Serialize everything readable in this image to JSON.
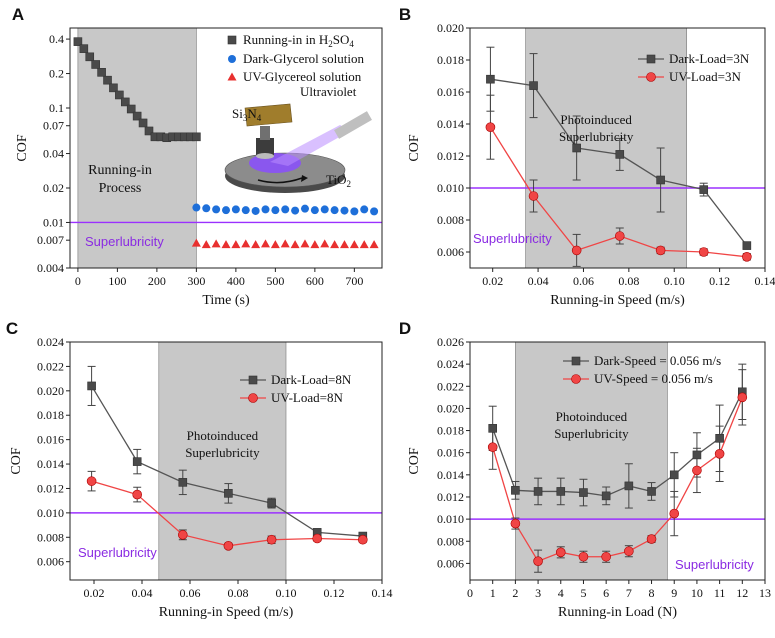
{
  "colors": {
    "dark": "#555555",
    "uv": "#f04545",
    "blue": "#1e6fd9",
    "red_triangle": "#e8302f",
    "purple": "#9b30ff",
    "shade": "#c8c8c8"
  },
  "chart_data": [
    {
      "panel": "A",
      "type": "scatter",
      "xlabel": "Time (s)",
      "ylabel": "COF",
      "yscale": "log",
      "xlim": [
        -20,
        770
      ],
      "ylim": [
        0.004,
        0.5
      ],
      "xticks": [
        0,
        100,
        200,
        300,
        400,
        500,
        600,
        700
      ],
      "yticks": [
        0.004,
        0.007,
        0.01,
        0.02,
        0.04,
        0.07,
        0.1,
        0.2,
        0.4
      ],
      "ytick_labels": [
        "0.004",
        "0.007",
        "0.01",
        "0.02",
        "0.04",
        "0.07",
        "0.1",
        "0.2",
        "0.4"
      ],
      "shaded_region": [
        0,
        300
      ],
      "threshold": 0.01,
      "annotation_left": [
        "Running-in",
        "Process"
      ],
      "annotation_superlubricity": "Superlubricity",
      "inset_labels": {
        "material1": "Si",
        "material1_sub": "3",
        "material1b": "N",
        "material1b_sub": "4",
        "light": "Ultraviolet",
        "material2": "TiO",
        "material2_sub": "2"
      },
      "legend": [
        {
          "name": "Running-in in H",
          "sub": "2",
          "rest": "SO",
          "sub2": "4",
          "marker": "square"
        },
        {
          "name": "Dark-Glycerol solution",
          "marker": "circle"
        },
        {
          "name": "UV-Glycereol solution",
          "marker": "triangle"
        }
      ],
      "series": [
        {
          "name": "Running-in in H2SO4",
          "marker": "square",
          "x": [
            0,
            15,
            30,
            45,
            60,
            75,
            90,
            105,
            120,
            135,
            150,
            165,
            180,
            195,
            210,
            225,
            240,
            255,
            270,
            285,
            300
          ],
          "y": [
            0.38,
            0.33,
            0.28,
            0.24,
            0.205,
            0.175,
            0.15,
            0.13,
            0.113,
            0.098,
            0.085,
            0.074,
            0.063,
            0.056,
            0.056,
            0.055,
            0.056,
            0.056,
            0.056,
            0.056,
            0.056
          ]
        },
        {
          "name": "Dark-Glycerol solution",
          "marker": "circle",
          "x": [
            300,
            325,
            350,
            375,
            400,
            425,
            450,
            475,
            500,
            525,
            550,
            575,
            600,
            625,
            650,
            675,
            700,
            725,
            750
          ],
          "y": [
            0.0135,
            0.0133,
            0.013,
            0.0128,
            0.013,
            0.0128,
            0.0126,
            0.013,
            0.0128,
            0.013,
            0.0127,
            0.0132,
            0.0128,
            0.013,
            0.0128,
            0.0127,
            0.0125,
            0.013,
            0.0125
          ]
        },
        {
          "name": "UV-Glycereol solution",
          "marker": "triangle",
          "x": [
            300,
            325,
            350,
            375,
            400,
            425,
            450,
            475,
            500,
            525,
            550,
            575,
            600,
            625,
            650,
            675,
            700,
            725,
            750
          ],
          "y": [
            0.0066,
            0.0064,
            0.0065,
            0.0064,
            0.0064,
            0.0065,
            0.0064,
            0.0065,
            0.0064,
            0.0065,
            0.0064,
            0.0065,
            0.0064,
            0.0065,
            0.0064,
            0.0064,
            0.0064,
            0.0064,
            0.0064
          ]
        }
      ]
    },
    {
      "panel": "B",
      "type": "line",
      "xlabel": "Running-in Speed (m/s)",
      "ylabel": "COF",
      "xlim": [
        0.01,
        0.14
      ],
      "ylim": [
        0.005,
        0.02
      ],
      "xticks": [
        0.02,
        0.04,
        0.06,
        0.08,
        0.1,
        0.12,
        0.14
      ],
      "xtick_labels": [
        "0.02",
        "0.04",
        "0.06",
        "0.08",
        "0.10",
        "0.12",
        "0.14"
      ],
      "yticks": [
        0.006,
        0.008,
        0.01,
        0.012,
        0.014,
        0.016,
        0.018,
        0.02
      ],
      "ytick_labels": [
        "0.006",
        "0.008",
        "0.010",
        "0.012",
        "0.014",
        "0.016",
        "0.018",
        "0.020"
      ],
      "shaded_region": [
        0.0345,
        0.1055
      ],
      "threshold": 0.01,
      "annotation_shaded": [
        "Photoinduced",
        "Superlubricity"
      ],
      "annotation_superlubricity": "Superlubricity",
      "legend_position": "top-right",
      "categories": [
        0.019,
        0.038,
        0.057,
        0.076,
        0.094,
        0.113,
        0.132
      ],
      "series": [
        {
          "name": "Dark-Load=3N",
          "marker": "square",
          "values": [
            0.0168,
            0.0164,
            0.0125,
            0.0121,
            0.0105,
            0.0099,
            0.0064
          ],
          "errors": [
            0.002,
            0.002,
            0.002,
            0.001,
            0.002,
            0.0004,
            0.0002
          ]
        },
        {
          "name": "UV-Load=3N",
          "marker": "circle",
          "values": [
            0.0138,
            0.0095,
            0.0061,
            0.007,
            0.0061,
            0.006,
            0.0057
          ],
          "errors": [
            0.002,
            0.001,
            0.001,
            0.0005,
            0.0002,
            0.0002,
            0.0002
          ]
        }
      ]
    },
    {
      "panel": "C",
      "type": "line",
      "xlabel": "Running-in Speed (m/s)",
      "ylabel": "COF",
      "xlim": [
        0.01,
        0.14
      ],
      "ylim": [
        0.0045,
        0.024
      ],
      "xticks": [
        0.02,
        0.04,
        0.06,
        0.08,
        0.1,
        0.12,
        0.14
      ],
      "xtick_labels": [
        "0.02",
        "0.04",
        "0.06",
        "0.08",
        "0.10",
        "0.12",
        "0.14"
      ],
      "yticks": [
        0.006,
        0.008,
        0.01,
        0.012,
        0.014,
        0.016,
        0.018,
        0.02,
        0.022,
        0.024
      ],
      "ytick_labels": [
        "0.006",
        "0.008",
        "0.010",
        "0.012",
        "0.014",
        "0.016",
        "0.018",
        "0.020",
        "0.022",
        "0.024"
      ],
      "shaded_region": [
        0.047,
        0.1
      ],
      "threshold": 0.01,
      "annotation_shaded": [
        "Photoinduced",
        "Superlubricity"
      ],
      "annotation_superlubricity": "Superlubricity",
      "legend_position": "top-right",
      "categories": [
        0.019,
        0.038,
        0.057,
        0.076,
        0.094,
        0.113,
        0.132
      ],
      "series": [
        {
          "name": "Dark-Load=8N",
          "marker": "square",
          "values": [
            0.0204,
            0.0142,
            0.0125,
            0.0116,
            0.0108,
            0.0084,
            0.0081
          ],
          "errors": [
            0.0016,
            0.001,
            0.001,
            0.0008,
            0.0004,
            0.0003,
            0.0002
          ]
        },
        {
          "name": "UV-Load=8N",
          "marker": "circle",
          "values": [
            0.0126,
            0.0115,
            0.0082,
            0.0073,
            0.0078,
            0.0079,
            0.0078
          ],
          "errors": [
            0.0008,
            0.0006,
            0.0004,
            0.0002,
            0.0003,
            0.0002,
            0.0002
          ]
        }
      ]
    },
    {
      "panel": "D",
      "type": "line",
      "xlabel": "Running-in Load (N)",
      "ylabel": "COF",
      "xlim": [
        0,
        13
      ],
      "ylim": [
        0.0045,
        0.026
      ],
      "xticks": [
        0,
        1,
        2,
        3,
        4,
        5,
        6,
        7,
        8,
        9,
        10,
        11,
        12,
        13
      ],
      "xtick_labels": [
        "0",
        "1",
        "2",
        "3",
        "4",
        "5",
        "6",
        "7",
        "8",
        "9",
        "10",
        "11",
        "12",
        "13"
      ],
      "yticks": [
        0.006,
        0.008,
        0.01,
        0.012,
        0.014,
        0.016,
        0.018,
        0.02,
        0.022,
        0.024,
        0.026
      ],
      "ytick_labels": [
        "0.006",
        "0.008",
        "0.010",
        "0.012",
        "0.014",
        "0.016",
        "0.018",
        "0.020",
        "0.022",
        "0.024",
        "0.026"
      ],
      "shaded_region": [
        2,
        8.7
      ],
      "threshold": 0.01,
      "annotation_shaded": [
        "Photoinduced",
        "Superlubricity"
      ],
      "annotation_superlubricity": "Superlubricity",
      "legend_position": "top",
      "categories": [
        1,
        2,
        3,
        4,
        5,
        6,
        7,
        8,
        9,
        10,
        11,
        12
      ],
      "series": [
        {
          "name": "Dark-Speed = 0.056 m/s",
          "marker": "square",
          "values": [
            0.0182,
            0.0126,
            0.0125,
            0.0125,
            0.0124,
            0.0121,
            0.013,
            0.0125,
            0.014,
            0.0158,
            0.0173,
            0.0215
          ],
          "errors": [
            0.002,
            0.0008,
            0.0012,
            0.0012,
            0.0012,
            0.0008,
            0.002,
            0.0008,
            0.002,
            0.002,
            0.003,
            0.0025
          ]
        },
        {
          "name": "UV-Speed = 0.056 m/s",
          "marker": "circle",
          "values": [
            0.0165,
            0.0096,
            0.0062,
            0.007,
            0.0066,
            0.0066,
            0.0071,
            0.0082,
            0.0105,
            0.0144,
            0.0159,
            0.021
          ],
          "errors": [
            0.002,
            0.0005,
            0.001,
            0.0005,
            0.0005,
            0.0005,
            0.0005,
            0.0003,
            0.002,
            0.002,
            0.0025,
            0.0025
          ]
        }
      ]
    }
  ]
}
